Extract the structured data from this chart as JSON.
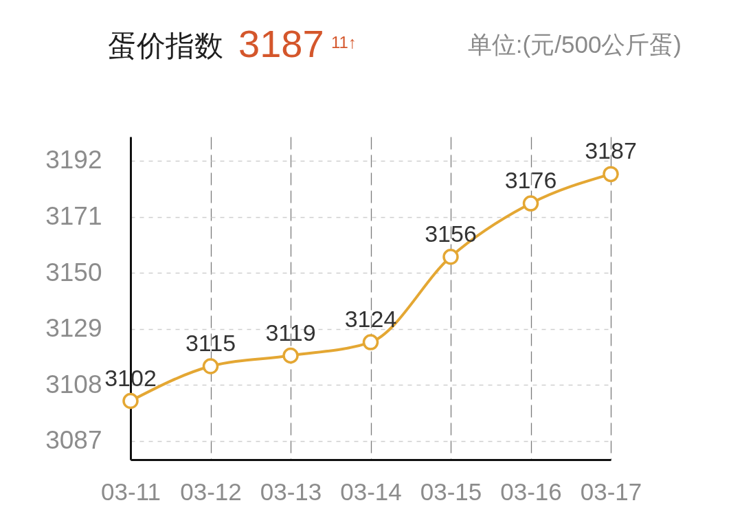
{
  "chart_data": {
    "type": "line",
    "title": "蛋价指数",
    "annotations": [
      "3187",
      "11↑",
      "单位:(元/500公斤蛋)"
    ],
    "categories": [
      "03-11",
      "03-12",
      "03-13",
      "03-14",
      "03-15",
      "03-16",
      "03-17"
    ],
    "series": [
      {
        "color": "#e4a733",
        "values": [
          3102,
          3115,
          3119,
          3124,
          3156,
          3176,
          3187
        ]
      }
    ],
    "ylim": [
      3080,
      3201
    ],
    "yticks": [
      3087,
      3108,
      3129,
      3150,
      3171,
      3192
    ],
    "grid": true,
    "data_labels": true,
    "marker": "circle",
    "line_style": "solid"
  }
}
